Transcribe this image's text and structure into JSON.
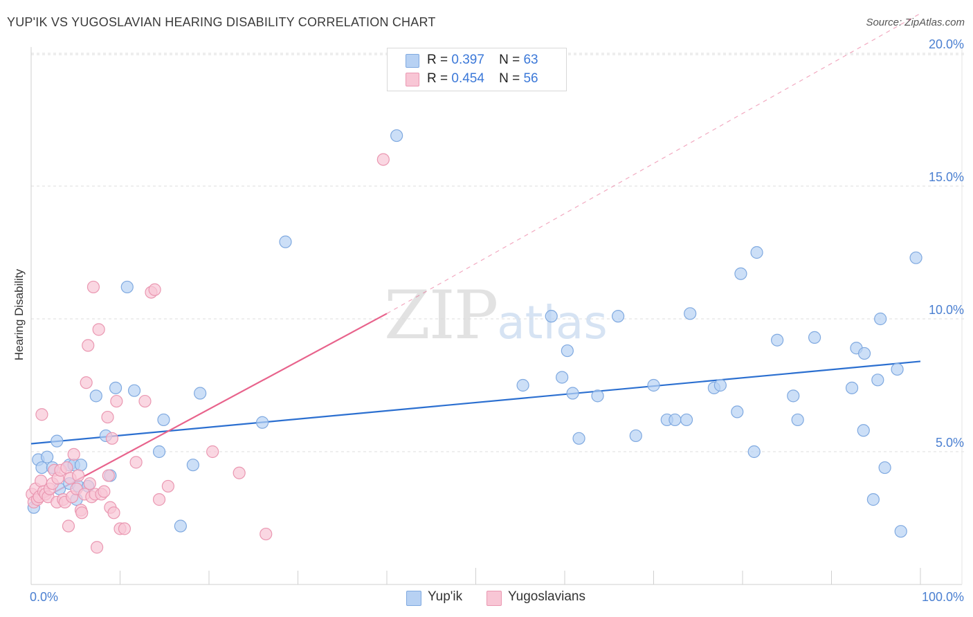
{
  "header": {
    "title": "YUP'IK VS YUGOSLAVIAN HEARING DISABILITY CORRELATION CHART",
    "source": "Source: ZipAtlas.com"
  },
  "watermark": {
    "zip": "ZIP",
    "atlas": "atlas"
  },
  "colors": {
    "blue_fill": "#b7d1f3",
    "blue_stroke": "#7fa9e0",
    "blue_line": "#2b6fd0",
    "pink_fill": "#f8c6d5",
    "pink_stroke": "#ea97b1",
    "pink_line": "#e8638c",
    "grid": "#dcdcdc",
    "tick_text": "#4a7fd1"
  },
  "stats": {
    "row1": {
      "r_label": "R =",
      "r_value": "0.397",
      "n_label": "N =",
      "n_value": "63"
    },
    "row2": {
      "r_label": "R =",
      "r_value": "0.454",
      "n_label": "N =",
      "n_value": "56"
    }
  },
  "legend": {
    "blue": "Yup'ik",
    "pink": "Yugoslavians"
  },
  "chart_data": {
    "type": "scatter",
    "title": "YUP'IK VS YUGOSLAVIAN HEARING DISABILITY CORRELATION CHART",
    "xlabel": "",
    "ylabel": "Hearing Disability",
    "xlim": [
      0,
      100
    ],
    "ylim": [
      0,
      20.5
    ],
    "x_tick_labels": {
      "left": "0.0%",
      "right": "100.0%"
    },
    "y_ticks": [
      {
        "value": 5,
        "label": "5.0%"
      },
      {
        "value": 10,
        "label": "10.0%"
      },
      {
        "value": 15,
        "label": "15.0%"
      },
      {
        "value": 20,
        "label": "20.0%"
      }
    ],
    "grid": true,
    "series": [
      {
        "name": "Yup'ik",
        "color": "blue",
        "r": 0.397,
        "n": 63,
        "trend": {
          "x0": 0,
          "y0": 5.3,
          "x1": 100,
          "y1": 8.4
        },
        "points": [
          [
            0.3,
            2.9
          ],
          [
            0.8,
            4.7
          ],
          [
            1.8,
            4.8
          ],
          [
            1.2,
            4.4
          ],
          [
            2.4,
            4.4
          ],
          [
            2.9,
            5.4
          ],
          [
            3.2,
            3.6
          ],
          [
            4.3,
            3.8
          ],
          [
            4.3,
            4.5
          ],
          [
            4.8,
            4.5
          ],
          [
            5.3,
            3.7
          ],
          [
            5.1,
            3.2
          ],
          [
            5.6,
            4.5
          ],
          [
            6.4,
            3.7
          ],
          [
            7.3,
            7.1
          ],
          [
            8.4,
            5.6
          ],
          [
            8.9,
            4.1
          ],
          [
            9.5,
            7.4
          ],
          [
            10.8,
            11.2
          ],
          [
            11.6,
            7.3
          ],
          [
            14.4,
            5.0
          ],
          [
            14.9,
            6.2
          ],
          [
            16.8,
            2.2
          ],
          [
            18.2,
            4.5
          ],
          [
            19.0,
            7.2
          ],
          [
            26.0,
            6.1
          ],
          [
            28.6,
            12.9
          ],
          [
            41.1,
            16.9
          ],
          [
            55.3,
            7.5
          ],
          [
            58.5,
            10.1
          ],
          [
            59.7,
            7.8
          ],
          [
            60.3,
            8.8
          ],
          [
            60.9,
            7.2
          ],
          [
            61.6,
            5.5
          ],
          [
            63.7,
            7.1
          ],
          [
            66.0,
            10.1
          ],
          [
            68.0,
            5.6
          ],
          [
            70.0,
            7.5
          ],
          [
            71.5,
            6.2
          ],
          [
            72.4,
            6.2
          ],
          [
            73.7,
            6.2
          ],
          [
            74.1,
            10.2
          ],
          [
            76.8,
            7.4
          ],
          [
            77.5,
            7.5
          ],
          [
            79.4,
            6.5
          ],
          [
            79.8,
            11.7
          ],
          [
            81.3,
            5.0
          ],
          [
            81.6,
            12.5
          ],
          [
            83.9,
            9.2
          ],
          [
            85.7,
            7.1
          ],
          [
            86.2,
            6.2
          ],
          [
            88.1,
            9.3
          ],
          [
            92.3,
            7.4
          ],
          [
            92.8,
            8.9
          ],
          [
            93.6,
            5.8
          ],
          [
            93.7,
            8.7
          ],
          [
            94.7,
            3.2
          ],
          [
            95.2,
            7.7
          ],
          [
            95.5,
            10.0
          ],
          [
            96.0,
            4.4
          ],
          [
            97.4,
            8.1
          ],
          [
            97.8,
            2.0
          ],
          [
            99.5,
            12.3
          ]
        ]
      },
      {
        "name": "Yugoslavians",
        "color": "pink",
        "r": 0.454,
        "n": 56,
        "trend": {
          "x0": 0,
          "y0": 3.0,
          "x1": 40,
          "y1": 10.2,
          "dashed_to_x": 100,
          "dashed_to_y": 21.5
        },
        "points": [
          [
            0.1,
            3.4
          ],
          [
            0.3,
            3.1
          ],
          [
            0.5,
            3.6
          ],
          [
            0.7,
            3.2
          ],
          [
            0.9,
            3.3
          ],
          [
            1.1,
            3.9
          ],
          [
            1.4,
            3.5
          ],
          [
            1.6,
            3.4
          ],
          [
            1.9,
            3.3
          ],
          [
            2.1,
            3.6
          ],
          [
            2.4,
            3.8
          ],
          [
            2.6,
            4.3
          ],
          [
            2.9,
            3.1
          ],
          [
            3.0,
            4.0
          ],
          [
            3.3,
            4.3
          ],
          [
            3.6,
            3.2
          ],
          [
            3.8,
            3.1
          ],
          [
            4.0,
            4.4
          ],
          [
            4.2,
            2.2
          ],
          [
            4.4,
            4.0
          ],
          [
            4.6,
            3.3
          ],
          [
            4.8,
            4.9
          ],
          [
            5.1,
            3.6
          ],
          [
            5.3,
            4.1
          ],
          [
            5.6,
            2.8
          ],
          [
            5.7,
            2.7
          ],
          [
            6.0,
            3.4
          ],
          [
            6.2,
            7.6
          ],
          [
            6.4,
            9.0
          ],
          [
            6.6,
            3.8
          ],
          [
            6.8,
            3.3
          ],
          [
            7.0,
            11.2
          ],
          [
            7.2,
            3.4
          ],
          [
            7.4,
            1.4
          ],
          [
            7.6,
            9.6
          ],
          [
            7.9,
            3.4
          ],
          [
            8.2,
            3.5
          ],
          [
            8.6,
            6.3
          ],
          [
            8.7,
            4.1
          ],
          [
            8.9,
            2.9
          ],
          [
            9.1,
            5.5
          ],
          [
            9.3,
            2.7
          ],
          [
            9.6,
            6.9
          ],
          [
            10.0,
            2.1
          ],
          [
            10.5,
            2.1
          ],
          [
            11.8,
            4.6
          ],
          [
            12.8,
            6.9
          ],
          [
            13.5,
            11.0
          ],
          [
            13.9,
            11.1
          ],
          [
            14.4,
            3.2
          ],
          [
            15.4,
            3.7
          ],
          [
            20.4,
            5.0
          ],
          [
            23.4,
            4.2
          ],
          [
            26.4,
            1.9
          ],
          [
            39.6,
            16.0
          ],
          [
            1.2,
            6.4
          ]
        ]
      }
    ]
  }
}
